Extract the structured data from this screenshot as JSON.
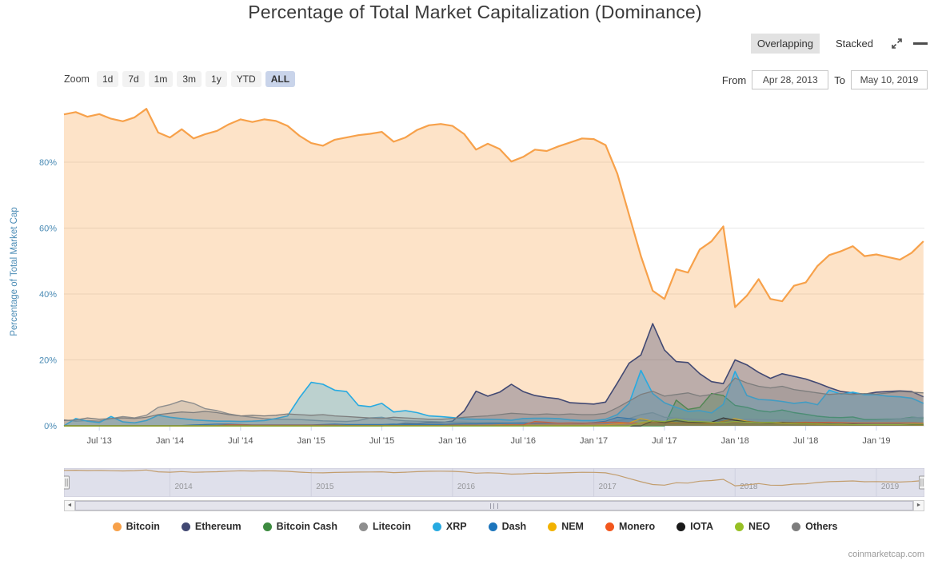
{
  "title": "Percentage of Total Market Capitalization (Dominance)",
  "toolbar": {
    "overlapping_label": "Overlapping",
    "stacked_label": "Stacked"
  },
  "zoom": {
    "label": "Zoom",
    "buttons": [
      "1d",
      "7d",
      "1m",
      "3m",
      "1y",
      "YTD",
      "ALL"
    ],
    "active": "ALL"
  },
  "range": {
    "from_label": "From",
    "from_value": "Apr 28, 2013",
    "to_label": "To",
    "to_value": "May 10, 2019"
  },
  "icons": {
    "scroll_left": "◄",
    "scroll_right": "►"
  },
  "watermark": "coinmarketcap.com",
  "chart_data": {
    "type": "area",
    "mode": "overlapping",
    "title": "Percentage of Total Market Capitalization (Dominance)",
    "ylabel": "Percentage of Total Market Cap",
    "ylim": [
      0,
      100
    ],
    "yticks": [
      0,
      20,
      40,
      60,
      80
    ],
    "ytick_suffix": "%",
    "axis_color": "#4a8bb5",
    "xtick_color": "#555555",
    "grid_color": "#e6e6e6",
    "x_range": [
      2013.25,
      2019.34
    ],
    "x_start": 2013.25,
    "x_step": 0.083333,
    "xticks": [
      {
        "x": 2013.5,
        "label": "Jul '13"
      },
      {
        "x": 2014.0,
        "label": "Jan '14"
      },
      {
        "x": 2014.5,
        "label": "Jul '14"
      },
      {
        "x": 2015.0,
        "label": "Jan '15"
      },
      {
        "x": 2015.5,
        "label": "Jul '15"
      },
      {
        "x": 2016.0,
        "label": "Jan '16"
      },
      {
        "x": 2016.5,
        "label": "Jul '16"
      },
      {
        "x": 2017.0,
        "label": "Jan '17"
      },
      {
        "x": 2017.5,
        "label": "Jul '17"
      },
      {
        "x": 2018.0,
        "label": "Jan '18"
      },
      {
        "x": 2018.5,
        "label": "Jul '18"
      },
      {
        "x": 2019.0,
        "label": "Jan '19"
      }
    ],
    "navigator": {
      "line_color": "#c8a06a",
      "background": "#e7e7f0",
      "year_ticks": [
        {
          "x": 2014,
          "label": "2014"
        },
        {
          "x": 2015,
          "label": "2015"
        },
        {
          "x": 2016,
          "label": "2016"
        },
        {
          "x": 2017,
          "label": "2017"
        },
        {
          "x": 2018,
          "label": "2018"
        },
        {
          "x": 2019,
          "label": "2019"
        }
      ]
    },
    "series": [
      {
        "name": "Bitcoin",
        "color": "#f7a14a",
        "line_width": 2.2,
        "fill_opacity": 0.3,
        "values": [
          94.5,
          95.2,
          93.8,
          94.6,
          93.2,
          92.4,
          93.6,
          96.2,
          89.0,
          87.5,
          90.0,
          87.2,
          88.5,
          89.5,
          91.5,
          93.0,
          92.2,
          93.0,
          92.5,
          91.0,
          88.0,
          85.8,
          85.0,
          86.8,
          87.5,
          88.2,
          88.6,
          89.2,
          86.2,
          87.5,
          89.8,
          91.2,
          91.6,
          91.0,
          88.5,
          83.8,
          85.6,
          84.0,
          80.2,
          81.6,
          83.8,
          83.4,
          84.8,
          86.0,
          87.2,
          87.0,
          85.2,
          76.5,
          64.0,
          51.5,
          41.0,
          38.5,
          47.5,
          46.5,
          53.5,
          56.0,
          60.5,
          36.0,
          39.5,
          44.5,
          38.5,
          37.8,
          42.5,
          43.5,
          48.5,
          51.8,
          53.0,
          54.5,
          51.5,
          52.0,
          51.2,
          50.4,
          52.5,
          56.0
        ]
      },
      {
        "name": "Ethereum",
        "color": "#424973",
        "line_width": 1.6,
        "fill_opacity": 0.35,
        "values": [
          0,
          0,
          0,
          0,
          0,
          0,
          0,
          0,
          0,
          0,
          0,
          0,
          0,
          0,
          0,
          0,
          0,
          0,
          0,
          0,
          0,
          0,
          0,
          0,
          0,
          0,
          0,
          0,
          0.3,
          0.8,
          0.7,
          1.0,
          1.0,
          1.4,
          4.5,
          10.5,
          9.0,
          10.2,
          12.6,
          10.4,
          9.2,
          8.6,
          8.2,
          7.0,
          6.8,
          6.6,
          7.2,
          13.0,
          19.0,
          21.5,
          31.0,
          23.0,
          19.5,
          19.2,
          15.8,
          13.4,
          12.8,
          20.0,
          18.5,
          16.2,
          14.4,
          15.8,
          15.0,
          14.2,
          13.0,
          11.6,
          10.4,
          10.0,
          9.6,
          10.2,
          10.4,
          10.6,
          10.4,
          8.8
        ]
      },
      {
        "name": "Bitcoin Cash",
        "color": "#3d8b40",
        "line_width": 1.4,
        "fill_opacity": 0.32,
        "values": [
          0,
          0,
          0,
          0,
          0,
          0,
          0,
          0,
          0,
          0,
          0,
          0,
          0,
          0,
          0,
          0,
          0,
          0,
          0,
          0,
          0,
          0,
          0,
          0,
          0,
          0,
          0,
          0,
          0,
          0,
          0,
          0,
          0,
          0,
          0,
          0,
          0,
          0,
          0,
          0,
          0,
          0,
          0,
          0,
          0,
          0,
          0,
          0,
          0,
          0,
          0,
          0,
          7.8,
          5.0,
          5.6,
          9.8,
          9.2,
          6.2,
          5.6,
          4.6,
          4.2,
          4.8,
          4.0,
          3.5,
          2.9,
          2.6,
          2.5,
          2.7,
          1.9,
          1.9,
          2.0,
          2.1,
          2.6,
          2.4
        ]
      },
      {
        "name": "Litecoin",
        "color": "#8e8e8e",
        "line_width": 1.4,
        "fill_opacity": 0.3,
        "values": [
          1.8,
          1.4,
          1.6,
          1.4,
          2.2,
          2.8,
          2.4,
          3.2,
          5.6,
          6.4,
          7.6,
          6.8,
          5.2,
          4.6,
          3.6,
          3.0,
          2.6,
          2.2,
          2.0,
          2.0,
          1.9,
          1.7,
          1.5,
          1.4,
          1.3,
          1.6,
          2.4,
          2.6,
          1.8,
          1.5,
          1.4,
          1.3,
          1.2,
          1.1,
          1.1,
          1.0,
          1.0,
          1.0,
          0.9,
          1.0,
          1.0,
          0.9,
          0.9,
          0.9,
          0.9,
          0.9,
          0.9,
          1.5,
          2.2,
          3.4,
          4.0,
          2.6,
          2.4,
          2.1,
          1.9,
          1.7,
          1.6,
          1.8,
          2.0,
          1.9,
          1.8,
          1.7,
          1.6,
          1.7,
          1.8,
          1.6,
          1.5,
          1.6,
          1.5,
          1.6,
          1.8,
          2.1,
          2.4,
          2.6
        ]
      },
      {
        "name": "XRP",
        "color": "#27aae1",
        "line_width": 1.6,
        "fill_opacity": 0.3,
        "values": [
          0.0,
          2.2,
          1.4,
          1.0,
          2.8,
          1.2,
          0.9,
          1.6,
          3.2,
          2.6,
          2.2,
          1.8,
          1.6,
          1.4,
          1.4,
          1.3,
          1.4,
          1.6,
          2.2,
          3.0,
          8.5,
          13.2,
          12.6,
          10.8,
          10.4,
          6.2,
          5.8,
          6.8,
          4.2,
          4.6,
          4.0,
          3.0,
          2.8,
          2.5,
          2.1,
          2.0,
          2.0,
          1.9,
          1.7,
          2.2,
          2.3,
          2.3,
          2.2,
          1.8,
          1.6,
          1.6,
          2.0,
          3.4,
          6.8,
          16.8,
          9.8,
          7.0,
          5.6,
          4.4,
          4.6,
          3.9,
          6.5,
          16.5,
          9.2,
          8.0,
          7.8,
          7.4,
          6.8,
          7.2,
          6.4,
          10.8,
          9.6,
          10.2,
          9.4,
          9.4,
          9.0,
          8.8,
          8.4,
          6.8
        ]
      },
      {
        "name": "Dash",
        "color": "#1c75bc",
        "line_width": 1.2,
        "fill_opacity": 0.3,
        "values": [
          0,
          0,
          0,
          0,
          0,
          0,
          0,
          0,
          0,
          0,
          0.1,
          0.3,
          0.4,
          0.5,
          0.5,
          0.4,
          0.3,
          0.3,
          0.3,
          0.3,
          0.3,
          0.3,
          0.4,
          0.5,
          0.4,
          0.4,
          0.4,
          0.4,
          0.5,
          0.4,
          0.4,
          0.4,
          0.4,
          0.5,
          0.6,
          0.6,
          0.7,
          0.7,
          0.8,
          0.8,
          0.7,
          0.8,
          0.8,
          0.8,
          0.7,
          1.0,
          1.4,
          2.6,
          2.2,
          1.7,
          1.5,
          1.3,
          1.2,
          1.1,
          1.0,
          1.0,
          0.9,
          1.1,
          1.0,
          0.9,
          0.9,
          0.9,
          0.8,
          0.8,
          0.7,
          0.7,
          0.7,
          0.6,
          0.6,
          0.5,
          0.5,
          0.5,
          0.5,
          0.5
        ]
      },
      {
        "name": "NEM",
        "color": "#f2b200",
        "line_width": 1.2,
        "fill_opacity": 0.3,
        "values": [
          0,
          0,
          0,
          0,
          0,
          0,
          0,
          0,
          0,
          0,
          0,
          0,
          0,
          0,
          0,
          0,
          0,
          0,
          0,
          0,
          0,
          0,
          0,
          0.1,
          0.1,
          0.1,
          0.1,
          0.1,
          0.1,
          0.1,
          0.1,
          0.1,
          0.1,
          0.1,
          0.1,
          0.1,
          0.2,
          0.3,
          0.3,
          0.2,
          0.2,
          0.2,
          0.2,
          0.2,
          0.2,
          0.2,
          0.3,
          0.6,
          0.9,
          2.2,
          1.4,
          1.1,
          1.0,
          0.8,
          0.7,
          0.6,
          1.4,
          2.2,
          1.4,
          1.0,
          0.8,
          0.7,
          0.6,
          0.5,
          0.4,
          0.4,
          0.3,
          0.3,
          0.3,
          0.3,
          0.3,
          0.3,
          0.3,
          0.2
        ]
      },
      {
        "name": "Monero",
        "color": "#f2571d",
        "line_width": 1.2,
        "fill_opacity": 0.3,
        "values": [
          0,
          0,
          0,
          0,
          0,
          0,
          0,
          0,
          0,
          0,
          0,
          0,
          0,
          0.1,
          0.3,
          0.3,
          0.2,
          0.2,
          0.2,
          0.2,
          0.2,
          0.2,
          0.2,
          0.2,
          0.1,
          0.1,
          0.1,
          0.1,
          0.1,
          0.1,
          0.1,
          0.1,
          0.1,
          0.2,
          0.2,
          0.2,
          0.2,
          0.2,
          0.3,
          0.3,
          1.3,
          1.1,
          0.8,
          0.9,
          0.8,
          0.9,
          1.1,
          1.1,
          0.9,
          0.8,
          1.0,
          0.9,
          0.8,
          0.9,
          0.8,
          0.9,
          1.1,
          1.1,
          1.2,
          1.1,
          1.0,
          1.1,
          1.0,
          1.1,
          1.0,
          1.1,
          1.0,
          0.9,
          0.9,
          0.9,
          0.9,
          0.9,
          0.9,
          0.8
        ]
      },
      {
        "name": "IOTA",
        "color": "#1a1a1a",
        "line_width": 1.2,
        "fill_opacity": 0.3,
        "values": [
          0,
          0,
          0,
          0,
          0,
          0,
          0,
          0,
          0,
          0,
          0,
          0,
          0,
          0,
          0,
          0,
          0,
          0,
          0,
          0,
          0,
          0,
          0,
          0,
          0,
          0,
          0,
          0,
          0,
          0,
          0,
          0,
          0,
          0,
          0,
          0,
          0,
          0,
          0,
          0,
          0,
          0,
          0,
          0,
          0,
          0,
          0,
          0,
          0,
          0,
          1.5,
          1.0,
          1.6,
          1.1,
          1.0,
          1.1,
          2.4,
          1.7,
          1.2,
          1.0,
          0.9,
          1.0,
          0.9,
          0.8,
          0.7,
          0.6,
          0.5,
          0.5,
          0.4,
          0.4,
          0.4,
          0.4,
          0.4,
          0.4
        ]
      },
      {
        "name": "NEO",
        "color": "#97c025",
        "line_width": 1.2,
        "fill_opacity": 0.3,
        "values": [
          0,
          0,
          0,
          0,
          0,
          0,
          0,
          0,
          0,
          0,
          0,
          0,
          0,
          0,
          0,
          0,
          0,
          0,
          0,
          0,
          0,
          0,
          0,
          0,
          0,
          0,
          0,
          0,
          0,
          0,
          0,
          0,
          0,
          0,
          0,
          0,
          0,
          0,
          0,
          0,
          0,
          0,
          0,
          0,
          0,
          0,
          0,
          0,
          0,
          1.0,
          1.5,
          1.3,
          2.1,
          1.4,
          1.3,
          1.1,
          1.0,
          1.3,
          1.1,
          1.0,
          1.1,
          0.9,
          0.8,
          0.7,
          0.6,
          0.5,
          0.5,
          0.4,
          0.4,
          0.4,
          0.4,
          0.4,
          0.5,
          0.5
        ]
      },
      {
        "name": "Others",
        "color": "#7d7d7d",
        "line_width": 1.3,
        "fill_opacity": 0.3,
        "values": [
          1.6,
          1.8,
          2.4,
          2.0,
          2.2,
          2.4,
          2.2,
          2.6,
          3.4,
          3.8,
          4.2,
          4.0,
          4.4,
          4.0,
          3.4,
          3.0,
          3.2,
          3.0,
          3.2,
          3.6,
          3.4,
          3.2,
          3.4,
          3.0,
          2.8,
          2.6,
          2.4,
          2.2,
          2.6,
          2.4,
          2.2,
          2.0,
          2.0,
          2.2,
          2.6,
          2.8,
          3.0,
          3.4,
          3.8,
          3.6,
          3.4,
          3.6,
          3.4,
          3.6,
          3.4,
          3.4,
          3.8,
          5.5,
          7.5,
          9.5,
          10.5,
          9.0,
          9.5,
          10.0,
          9.0,
          9.5,
          10.5,
          14.5,
          13.0,
          12.0,
          11.5,
          12.0,
          11.0,
          10.5,
          10.0,
          9.5,
          9.8,
          9.5,
          9.8,
          9.6,
          10.0,
          10.4,
          10.2,
          10.0
        ]
      }
    ]
  }
}
